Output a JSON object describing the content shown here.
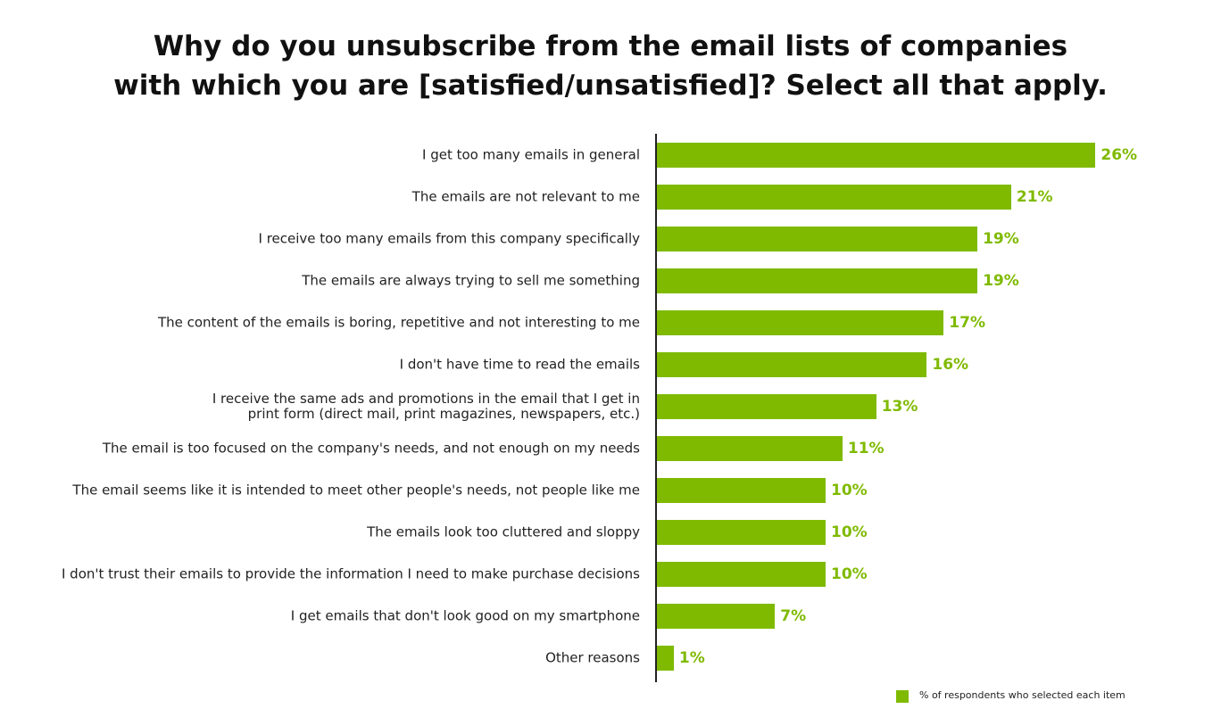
{
  "chart_data": {
    "type": "hbar",
    "title": "Why do you unsubscribe from the email lists of companies\nwith which you are [satisfied/unsatisfied]? Select all that apply.",
    "categories": [
      "I get too many emails in general",
      "The emails are not relevant to me",
      "I receive too many emails from this company specifically",
      "The emails are always trying to sell me something",
      "The content of the emails is boring, repetitive and not interesting to me",
      "I don't have time to read the emails",
      "I receive the same ads and promotions in the email that I get in\nprint form (direct mail, print magazines, newspapers, etc.)",
      "The email is too focused on the company's needs, and not enough on my needs",
      "The email seems like it is intended to meet other people's needs, not people like me",
      "The emails look too cluttered and sloppy",
      "I don't trust their emails to provide the information I need to make purchase decisions",
      "I get emails that don't look good on my smartphone",
      "Other reasons"
    ],
    "series": [
      {
        "name": "% of respondents who selected each item",
        "color": "#7fba00",
        "values": [
          26,
          21,
          19,
          19,
          17,
          16,
          13,
          11,
          10,
          10,
          10,
          7,
          1
        ],
        "value_labels": [
          "26%",
          "21%",
          "19%",
          "19%",
          "17%",
          "16%",
          "13%",
          "11%",
          "10%",
          "10%",
          "10%",
          "7%",
          "1%"
        ]
      }
    ],
    "legend": "bottom-right"
  }
}
